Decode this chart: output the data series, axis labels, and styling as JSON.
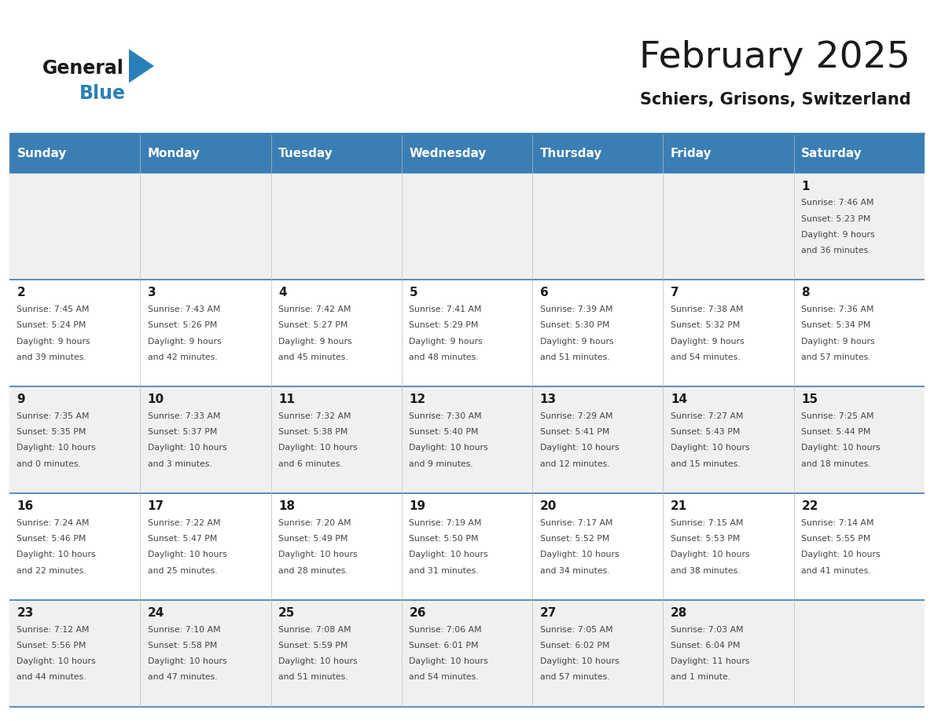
{
  "title": "February 2025",
  "subtitle": "Schiers, Grisons, Switzerland",
  "days_of_week": [
    "Sunday",
    "Monday",
    "Tuesday",
    "Wednesday",
    "Thursday",
    "Friday",
    "Saturday"
  ],
  "header_bg": "#3A7EB5",
  "header_text": "#FFFFFF",
  "cell_bg_light": "#F0F0F0",
  "cell_bg_white": "#FFFFFF",
  "separator_color": "#3A7EB5",
  "text_color": "#444444",
  "day_num_color": "#1A1A1A",
  "logo_general_color": "#1A1A1A",
  "logo_blue_color": "#2980B9",
  "weeks": [
    [
      {
        "day": null,
        "sunrise": null,
        "sunset": null,
        "daylight": null
      },
      {
        "day": null,
        "sunrise": null,
        "sunset": null,
        "daylight": null
      },
      {
        "day": null,
        "sunrise": null,
        "sunset": null,
        "daylight": null
      },
      {
        "day": null,
        "sunrise": null,
        "sunset": null,
        "daylight": null
      },
      {
        "day": null,
        "sunrise": null,
        "sunset": null,
        "daylight": null
      },
      {
        "day": null,
        "sunrise": null,
        "sunset": null,
        "daylight": null
      },
      {
        "day": 1,
        "sunrise": "7:46 AM",
        "sunset": "5:23 PM",
        "daylight": "9 hours\nand 36 minutes."
      }
    ],
    [
      {
        "day": 2,
        "sunrise": "7:45 AM",
        "sunset": "5:24 PM",
        "daylight": "9 hours\nand 39 minutes."
      },
      {
        "day": 3,
        "sunrise": "7:43 AM",
        "sunset": "5:26 PM",
        "daylight": "9 hours\nand 42 minutes."
      },
      {
        "day": 4,
        "sunrise": "7:42 AM",
        "sunset": "5:27 PM",
        "daylight": "9 hours\nand 45 minutes."
      },
      {
        "day": 5,
        "sunrise": "7:41 AM",
        "sunset": "5:29 PM",
        "daylight": "9 hours\nand 48 minutes."
      },
      {
        "day": 6,
        "sunrise": "7:39 AM",
        "sunset": "5:30 PM",
        "daylight": "9 hours\nand 51 minutes."
      },
      {
        "day": 7,
        "sunrise": "7:38 AM",
        "sunset": "5:32 PM",
        "daylight": "9 hours\nand 54 minutes."
      },
      {
        "day": 8,
        "sunrise": "7:36 AM",
        "sunset": "5:34 PM",
        "daylight": "9 hours\nand 57 minutes."
      }
    ],
    [
      {
        "day": 9,
        "sunrise": "7:35 AM",
        "sunset": "5:35 PM",
        "daylight": "10 hours\nand 0 minutes."
      },
      {
        "day": 10,
        "sunrise": "7:33 AM",
        "sunset": "5:37 PM",
        "daylight": "10 hours\nand 3 minutes."
      },
      {
        "day": 11,
        "sunrise": "7:32 AM",
        "sunset": "5:38 PM",
        "daylight": "10 hours\nand 6 minutes."
      },
      {
        "day": 12,
        "sunrise": "7:30 AM",
        "sunset": "5:40 PM",
        "daylight": "10 hours\nand 9 minutes."
      },
      {
        "day": 13,
        "sunrise": "7:29 AM",
        "sunset": "5:41 PM",
        "daylight": "10 hours\nand 12 minutes."
      },
      {
        "day": 14,
        "sunrise": "7:27 AM",
        "sunset": "5:43 PM",
        "daylight": "10 hours\nand 15 minutes."
      },
      {
        "day": 15,
        "sunrise": "7:25 AM",
        "sunset": "5:44 PM",
        "daylight": "10 hours\nand 18 minutes."
      }
    ],
    [
      {
        "day": 16,
        "sunrise": "7:24 AM",
        "sunset": "5:46 PM",
        "daylight": "10 hours\nand 22 minutes."
      },
      {
        "day": 17,
        "sunrise": "7:22 AM",
        "sunset": "5:47 PM",
        "daylight": "10 hours\nand 25 minutes."
      },
      {
        "day": 18,
        "sunrise": "7:20 AM",
        "sunset": "5:49 PM",
        "daylight": "10 hours\nand 28 minutes."
      },
      {
        "day": 19,
        "sunrise": "7:19 AM",
        "sunset": "5:50 PM",
        "daylight": "10 hours\nand 31 minutes."
      },
      {
        "day": 20,
        "sunrise": "7:17 AM",
        "sunset": "5:52 PM",
        "daylight": "10 hours\nand 34 minutes."
      },
      {
        "day": 21,
        "sunrise": "7:15 AM",
        "sunset": "5:53 PM",
        "daylight": "10 hours\nand 38 minutes."
      },
      {
        "day": 22,
        "sunrise": "7:14 AM",
        "sunset": "5:55 PM",
        "daylight": "10 hours\nand 41 minutes."
      }
    ],
    [
      {
        "day": 23,
        "sunrise": "7:12 AM",
        "sunset": "5:56 PM",
        "daylight": "10 hours\nand 44 minutes."
      },
      {
        "day": 24,
        "sunrise": "7:10 AM",
        "sunset": "5:58 PM",
        "daylight": "10 hours\nand 47 minutes."
      },
      {
        "day": 25,
        "sunrise": "7:08 AM",
        "sunset": "5:59 PM",
        "daylight": "10 hours\nand 51 minutes."
      },
      {
        "day": 26,
        "sunrise": "7:06 AM",
        "sunset": "6:01 PM",
        "daylight": "10 hours\nand 54 minutes."
      },
      {
        "day": 27,
        "sunrise": "7:05 AM",
        "sunset": "6:02 PM",
        "daylight": "10 hours\nand 57 minutes."
      },
      {
        "day": 28,
        "sunrise": "7:03 AM",
        "sunset": "6:04 PM",
        "daylight": "11 hours\nand 1 minute."
      },
      {
        "day": null,
        "sunrise": null,
        "sunset": null,
        "daylight": null
      }
    ]
  ]
}
